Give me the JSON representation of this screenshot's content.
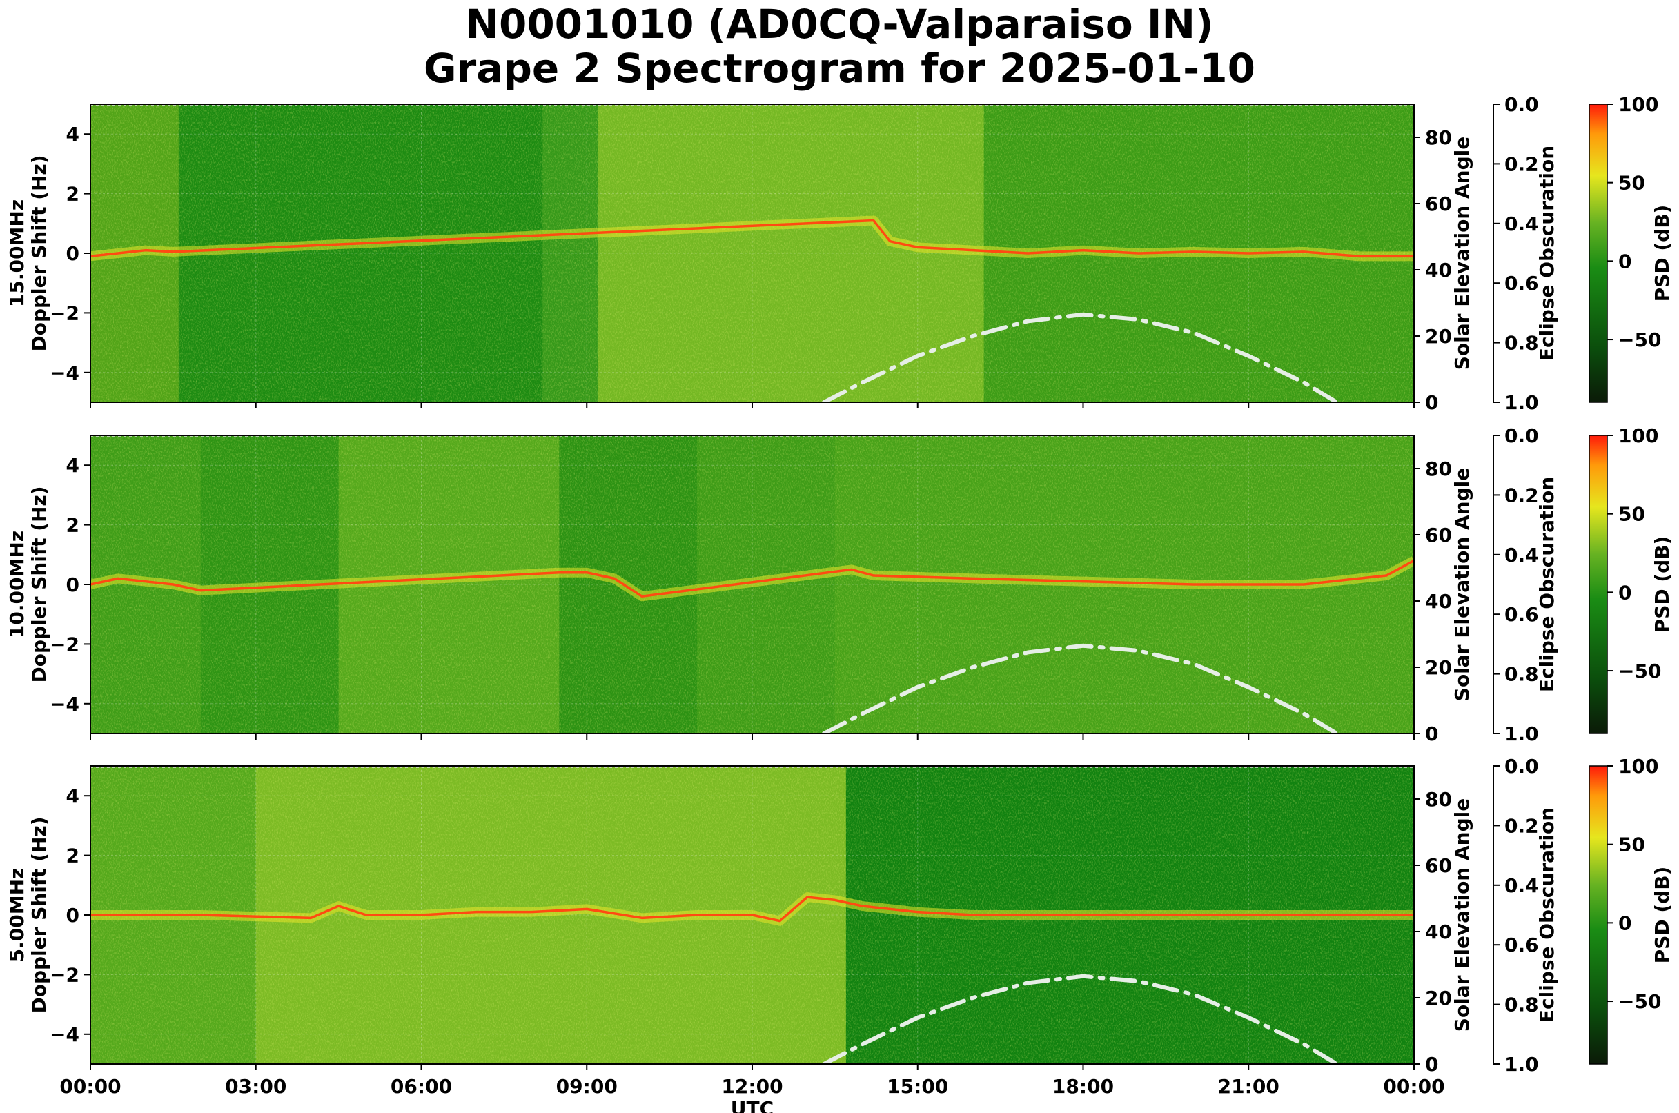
{
  "title_line1": "N0001010 (AD0CQ-Valparaiso IN)",
  "title_line2": "Grape 2 Spectrogram for 2025-01-10",
  "chart_data": [
    {
      "type": "heatmap",
      "panel": "15.00MHz",
      "ylabel": "15.00MHz\nDoppler Shift (Hz)",
      "ylim": [
        -5,
        5
      ],
      "yticks": [
        -4,
        -2,
        0,
        2,
        4
      ],
      "xlabel": "",
      "xlim_hours": [
        0,
        24
      ],
      "y2label": "Solar Elevation Angle",
      "y2lim": [
        0,
        90
      ],
      "y2ticks": [
        0,
        20,
        40,
        60,
        80
      ],
      "eclipse_label": "Eclipse Obscuration",
      "eclipse_ticks": [
        "0.0",
        "0.2",
        "0.4",
        "0.6",
        "0.8",
        "1.0"
      ],
      "colorbar_label": "PSD (dB)",
      "colorbar_range": [
        -90,
        100
      ],
      "colorbar_ticks": [
        100,
        50,
        0,
        -50
      ],
      "segments": [
        {
          "from": 0.0,
          "to": 1.6,
          "color": "#52a418"
        },
        {
          "from": 1.6,
          "to": 8.2,
          "color": "#1d8b12"
        },
        {
          "from": 8.2,
          "to": 9.2,
          "color": "#36991a"
        },
        {
          "from": 9.2,
          "to": 16.2,
          "color": "#74b823"
        },
        {
          "from": 16.2,
          "to": 24.0,
          "color": "#3c9c16"
        }
      ],
      "doppler_trace": [
        [
          0.0,
          -0.1
        ],
        [
          0.5,
          0.0
        ],
        [
          1.0,
          0.1
        ],
        [
          1.5,
          0.05
        ],
        [
          14.2,
          1.1
        ],
        [
          14.5,
          0.4
        ],
        [
          15.0,
          0.2
        ],
        [
          16.0,
          0.1
        ],
        [
          17.0,
          0.0
        ],
        [
          18.0,
          0.1
        ],
        [
          19.0,
          0.0
        ],
        [
          20.0,
          0.05
        ],
        [
          21.0,
          0.0
        ],
        [
          22.0,
          0.05
        ],
        [
          23.0,
          -0.1
        ],
        [
          24.0,
          -0.1
        ]
      ],
      "solar_elevation": [
        [
          13.3,
          0
        ],
        [
          14,
          6
        ],
        [
          15,
          14
        ],
        [
          16,
          20
        ],
        [
          17,
          24.5
        ],
        [
          18,
          26.5
        ],
        [
          19,
          25
        ],
        [
          20,
          21
        ],
        [
          21,
          14
        ],
        [
          22,
          6
        ],
        [
          22.6,
          0
        ]
      ]
    },
    {
      "type": "heatmap",
      "panel": "10.00MHz",
      "ylabel": "10.00MHz\nDoppler Shift (Hz)",
      "ylim": [
        -5,
        5
      ],
      "yticks": [
        -4,
        -2,
        0,
        2,
        4
      ],
      "xlabel": "",
      "xlim_hours": [
        0,
        24
      ],
      "y2label": "Solar Elevation Angle",
      "y2lim": [
        0,
        90
      ],
      "y2ticks": [
        0,
        20,
        40,
        60,
        80
      ],
      "eclipse_label": "Eclipse Obscuration",
      "eclipse_ticks": [
        "0.0",
        "0.2",
        "0.4",
        "0.6",
        "0.8",
        "1.0"
      ],
      "colorbar_label": "PSD (dB)",
      "colorbar_range": [
        -90,
        100
      ],
      "colorbar_ticks": [
        100,
        50,
        0,
        -50
      ],
      "segments": [
        {
          "from": 0.0,
          "to": 2.0,
          "color": "#3f9d18"
        },
        {
          "from": 2.0,
          "to": 4.5,
          "color": "#2e9414"
        },
        {
          "from": 4.5,
          "to": 8.5,
          "color": "#55a91c"
        },
        {
          "from": 8.5,
          "to": 11.0,
          "color": "#2c9213"
        },
        {
          "from": 11.0,
          "to": 13.5,
          "color": "#3e9c17"
        },
        {
          "from": 13.5,
          "to": 24.0,
          "color": "#48a219"
        }
      ],
      "doppler_trace": [
        [
          0.0,
          0.0
        ],
        [
          0.5,
          0.2
        ],
        [
          1.0,
          0.1
        ],
        [
          1.5,
          0.0
        ],
        [
          2.0,
          -0.2
        ],
        [
          8.5,
          0.4
        ],
        [
          9.0,
          0.4
        ],
        [
          9.5,
          0.2
        ],
        [
          10.0,
          -0.4
        ],
        [
          13.8,
          0.5
        ],
        [
          14.2,
          0.3
        ],
        [
          16.0,
          0.2
        ],
        [
          18.0,
          0.1
        ],
        [
          20.0,
          0.0
        ],
        [
          22.0,
          0.0
        ],
        [
          23.5,
          0.3
        ],
        [
          24.0,
          0.8
        ]
      ],
      "solar_elevation": [
        [
          13.3,
          0
        ],
        [
          14,
          6
        ],
        [
          15,
          14
        ],
        [
          16,
          20
        ],
        [
          17,
          24.5
        ],
        [
          18,
          26.5
        ],
        [
          19,
          25
        ],
        [
          20,
          21
        ],
        [
          21,
          14
        ],
        [
          22,
          6
        ],
        [
          22.6,
          0
        ]
      ]
    },
    {
      "type": "heatmap",
      "panel": "5.00MHz",
      "ylabel": "5.00MHz\nDoppler Shift (Hz)",
      "ylim": [
        -5,
        5
      ],
      "yticks": [
        -4,
        -2,
        0,
        2,
        4
      ],
      "xlabel": "UTC",
      "xlim_hours": [
        0,
        24
      ],
      "xticks": [
        "00:00",
        "03:00",
        "06:00",
        "09:00",
        "12:00",
        "15:00",
        "18:00",
        "21:00",
        "00:00"
      ],
      "y2label": "Solar Elevation Angle",
      "y2lim": [
        0,
        90
      ],
      "y2ticks": [
        0,
        20,
        40,
        60,
        80
      ],
      "eclipse_label": "Eclipse Obscuration",
      "eclipse_ticks": [
        "0.0",
        "0.2",
        "0.4",
        "0.6",
        "0.8",
        "1.0"
      ],
      "colorbar_label": "PSD (dB)",
      "colorbar_range": [
        -90,
        100
      ],
      "colorbar_ticks": [
        100,
        50,
        0,
        -50
      ],
      "segments": [
        {
          "from": 0.0,
          "to": 3.0,
          "color": "#55a91c"
        },
        {
          "from": 3.0,
          "to": 13.7,
          "color": "#7cbb24"
        },
        {
          "from": 13.7,
          "to": 24.0,
          "color": "#118210"
        }
      ],
      "doppler_trace": [
        [
          0.0,
          0.0
        ],
        [
          2.0,
          0.0
        ],
        [
          4.0,
          -0.1
        ],
        [
          4.5,
          0.3
        ],
        [
          5.0,
          0.0
        ],
        [
          6.0,
          0.0
        ],
        [
          7.0,
          0.1
        ],
        [
          8.0,
          0.1
        ],
        [
          9.0,
          0.2
        ],
        [
          10.0,
          -0.1
        ],
        [
          11.0,
          0.0
        ],
        [
          12.0,
          0.0
        ],
        [
          12.5,
          -0.2
        ],
        [
          13.0,
          0.6
        ],
        [
          13.5,
          0.5
        ],
        [
          14.0,
          0.3
        ],
        [
          15.0,
          0.1
        ],
        [
          16.0,
          0.0
        ],
        [
          24.0,
          0.0
        ]
      ],
      "solar_elevation": [
        [
          13.3,
          0
        ],
        [
          14,
          6
        ],
        [
          15,
          14
        ],
        [
          16,
          20
        ],
        [
          17,
          24.5
        ],
        [
          18,
          26.5
        ],
        [
          19,
          25
        ],
        [
          20,
          21
        ],
        [
          21,
          14
        ],
        [
          22,
          6
        ],
        [
          22.6,
          0
        ]
      ]
    }
  ]
}
